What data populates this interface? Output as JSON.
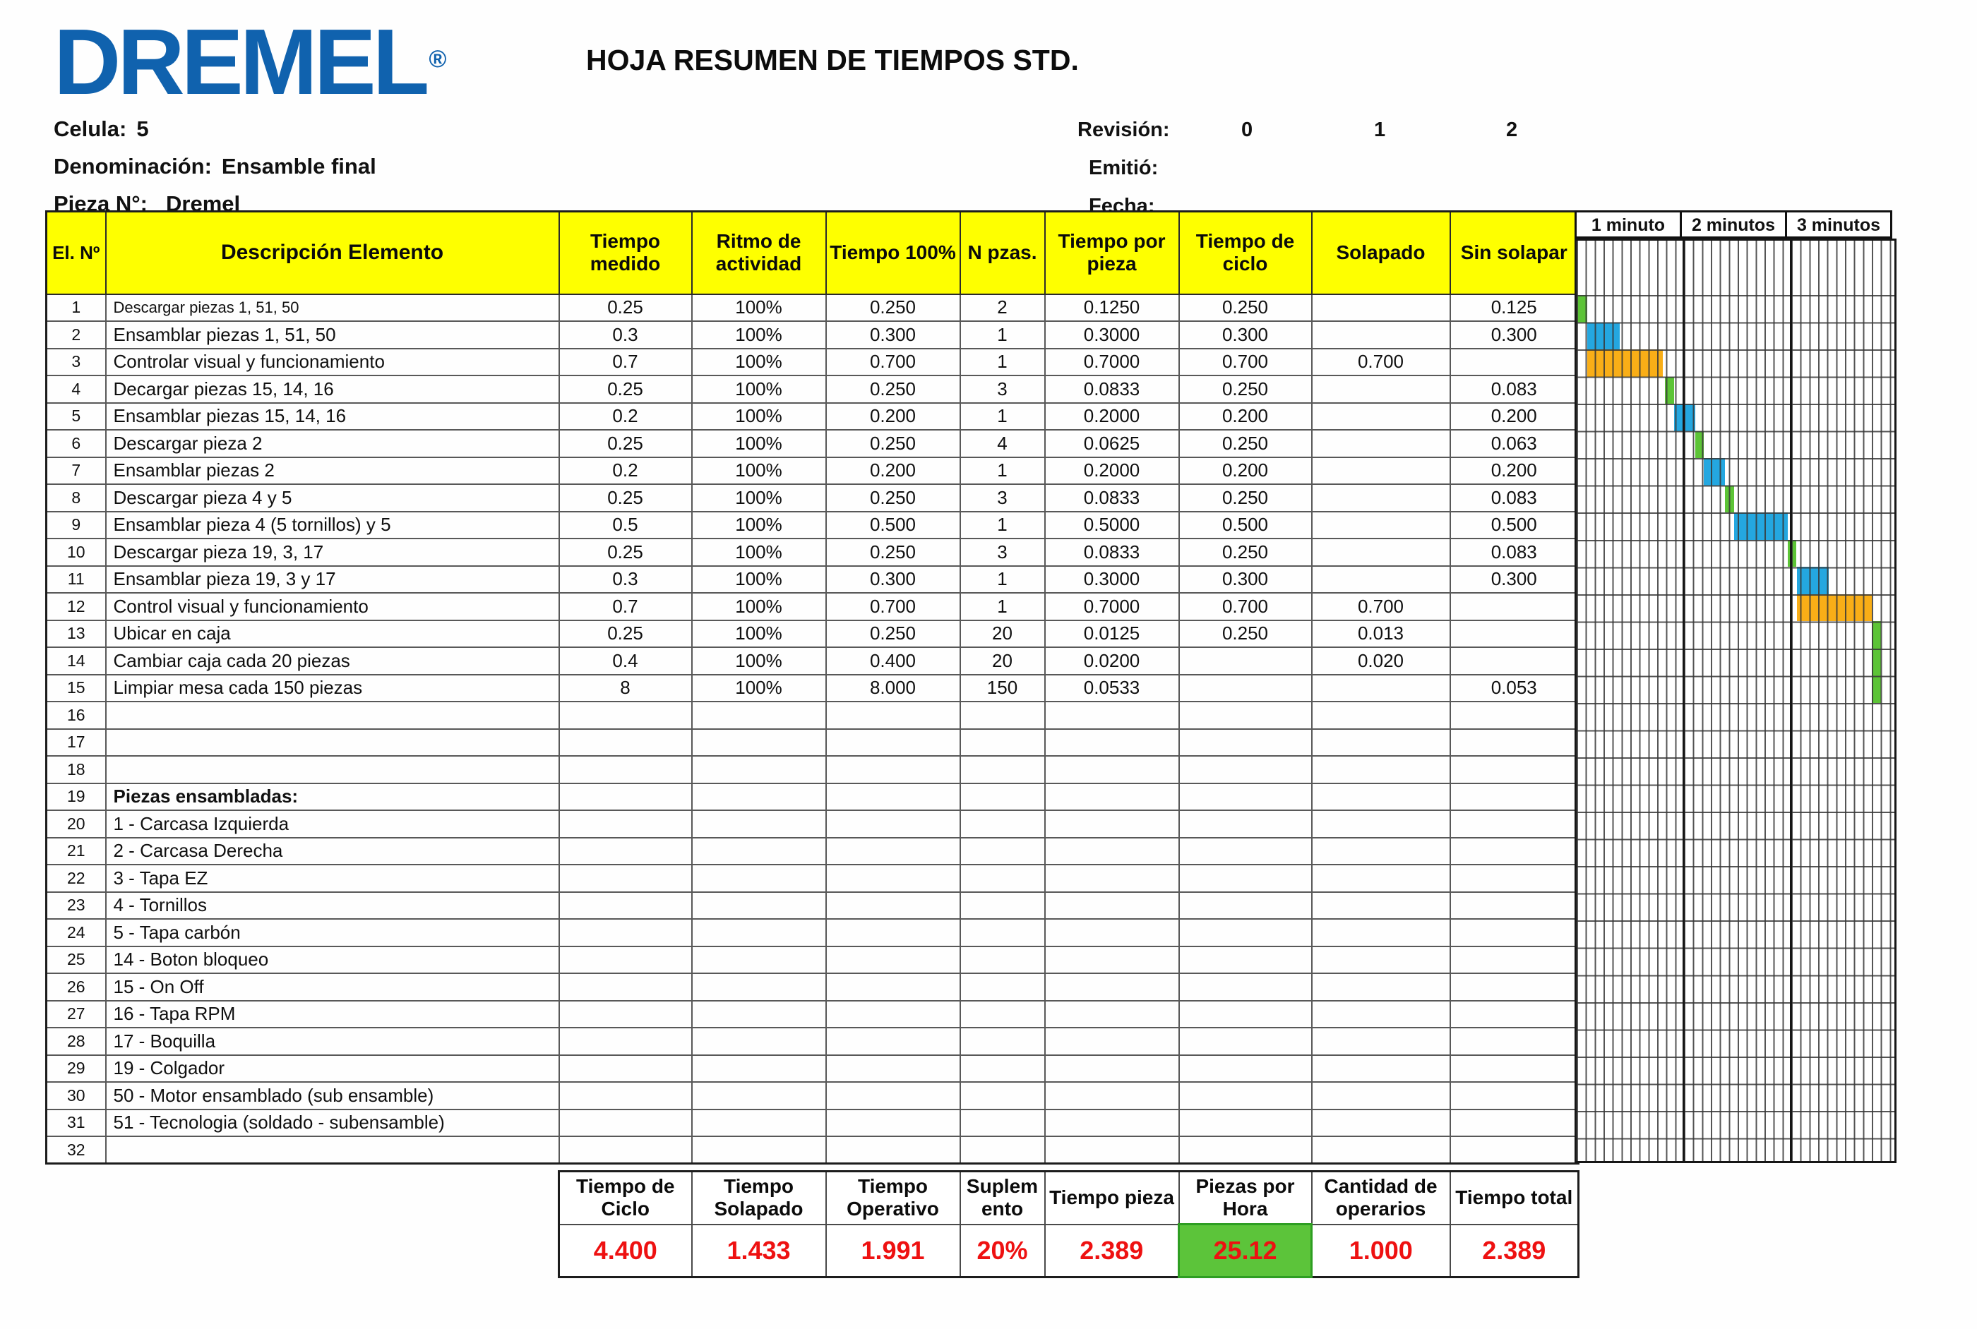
{
  "header": {
    "logo_text": "DREMEL",
    "registered_mark": "®",
    "title": "HOJA RESUMEN DE TIEMPOS STD.",
    "info": [
      {
        "label": "Celula:",
        "value": "5"
      },
      {
        "label": "Denominación:",
        "value": "Ensamble final"
      },
      {
        "label": "Pieza N°:",
        "value": "Dremel"
      }
    ],
    "revision": {
      "label": "Revisión:",
      "values": [
        "0",
        "1",
        "2"
      ]
    },
    "emitted_label": "Emitió:",
    "date_label": "Fecha:"
  },
  "table": {
    "columns": [
      "El. Nº",
      "Descripción Elemento",
      "Tiempo medido",
      "Ritmo de actividad",
      "Tiempo 100%",
      "N pzas.",
      "Tiempo por pieza",
      "Tiempo de ciclo",
      "Solapado",
      "Sin solapar"
    ],
    "rows": [
      {
        "n": "1",
        "desc": "Descargar piezas 1, 51, 50",
        "medido": "0.25",
        "ritmo": "100%",
        "t100": "0.250",
        "npzas": "2",
        "tpieza": "0.1250",
        "tciclo": "0.250",
        "solapado": "",
        "sinsolapar": "0.125"
      },
      {
        "n": "2",
        "desc": "Ensamblar piezas 1, 51, 50",
        "medido": "0.3",
        "ritmo": "100%",
        "t100": "0.300",
        "npzas": "1",
        "tpieza": "0.3000",
        "tciclo": "0.300",
        "solapado": "",
        "sinsolapar": "0.300"
      },
      {
        "n": "3",
        "desc": "Controlar visual y funcionamiento",
        "medido": "0.7",
        "ritmo": "100%",
        "t100": "0.700",
        "npzas": "1",
        "tpieza": "0.7000",
        "tciclo": "0.700",
        "solapado": "0.700",
        "sinsolapar": ""
      },
      {
        "n": "4",
        "desc": "Decargar piezas 15, 14, 16",
        "medido": "0.25",
        "ritmo": "100%",
        "t100": "0.250",
        "npzas": "3",
        "tpieza": "0.0833",
        "tciclo": "0.250",
        "solapado": "",
        "sinsolapar": "0.083"
      },
      {
        "n": "5",
        "desc": "Ensamblar piezas 15, 14, 16",
        "medido": "0.2",
        "ritmo": "100%",
        "t100": "0.200",
        "npzas": "1",
        "tpieza": "0.2000",
        "tciclo": "0.200",
        "solapado": "",
        "sinsolapar": "0.200"
      },
      {
        "n": "6",
        "desc": "Descargar pieza 2",
        "medido": "0.25",
        "ritmo": "100%",
        "t100": "0.250",
        "npzas": "4",
        "tpieza": "0.0625",
        "tciclo": "0.250",
        "solapado": "",
        "sinsolapar": "0.063"
      },
      {
        "n": "7",
        "desc": "Ensamblar piezas 2",
        "medido": "0.2",
        "ritmo": "100%",
        "t100": "0.200",
        "npzas": "1",
        "tpieza": "0.2000",
        "tciclo": "0.200",
        "solapado": "",
        "sinsolapar": "0.200"
      },
      {
        "n": "8",
        "desc": "Descargar pieza 4 y 5",
        "medido": "0.25",
        "ritmo": "100%",
        "t100": "0.250",
        "npzas": "3",
        "tpieza": "0.0833",
        "tciclo": "0.250",
        "solapado": "",
        "sinsolapar": "0.083"
      },
      {
        "n": "9",
        "desc": "Ensamblar pieza 4 (5 tornillos) y 5",
        "medido": "0.5",
        "ritmo": "100%",
        "t100": "0.500",
        "npzas": "1",
        "tpieza": "0.5000",
        "tciclo": "0.500",
        "solapado": "",
        "sinsolapar": "0.500"
      },
      {
        "n": "10",
        "desc": "Descargar pieza 19, 3, 17",
        "medido": "0.25",
        "ritmo": "100%",
        "t100": "0.250",
        "npzas": "3",
        "tpieza": "0.0833",
        "tciclo": "0.250",
        "solapado": "",
        "sinsolapar": "0.083"
      },
      {
        "n": "11",
        "desc": "Ensamblar pieza 19, 3 y 17",
        "medido": "0.3",
        "ritmo": "100%",
        "t100": "0.300",
        "npzas": "1",
        "tpieza": "0.3000",
        "tciclo": "0.300",
        "solapado": "",
        "sinsolapar": "0.300"
      },
      {
        "n": "12",
        "desc": "Control visual y funcionamiento",
        "medido": "0.7",
        "ritmo": "100%",
        "t100": "0.700",
        "npzas": "1",
        "tpieza": "0.7000",
        "tciclo": "0.700",
        "solapado": "0.700",
        "sinsolapar": ""
      },
      {
        "n": "13",
        "desc": "Ubicar en caja",
        "medido": "0.25",
        "ritmo": "100%",
        "t100": "0.250",
        "npzas": "20",
        "tpieza": "0.0125",
        "tciclo": "0.250",
        "solapado": "0.013",
        "sinsolapar": ""
      },
      {
        "n": "14",
        "desc": "Cambiar caja cada 20 piezas",
        "medido": "0.4",
        "ritmo": "100%",
        "t100": "0.400",
        "npzas": "20",
        "tpieza": "0.0200",
        "tciclo": "",
        "solapado": "0.020",
        "sinsolapar": ""
      },
      {
        "n": "15",
        "desc": "Limpiar mesa cada 150 piezas",
        "medido": "8",
        "ritmo": "100%",
        "t100": "8.000",
        "npzas": "150",
        "tpieza": "0.0533",
        "tciclo": "",
        "solapado": "",
        "sinsolapar": "0.053"
      },
      {
        "n": "16",
        "desc": "",
        "medido": "",
        "ritmo": "",
        "t100": "",
        "npzas": "",
        "tpieza": "",
        "tciclo": "",
        "solapado": "",
        "sinsolapar": ""
      },
      {
        "n": "17",
        "desc": "",
        "medido": "",
        "ritmo": "",
        "t100": "",
        "npzas": "",
        "tpieza": "",
        "tciclo": "",
        "solapado": "",
        "sinsolapar": ""
      },
      {
        "n": "18",
        "desc": "",
        "medido": "",
        "ritmo": "",
        "t100": "",
        "npzas": "",
        "tpieza": "",
        "tciclo": "",
        "solapado": "",
        "sinsolapar": ""
      },
      {
        "n": "19",
        "desc": "Piezas ensambladas:",
        "medido": "",
        "ritmo": "",
        "t100": "",
        "npzas": "",
        "tpieza": "",
        "tciclo": "",
        "solapado": "",
        "sinsolapar": ""
      },
      {
        "n": "20",
        "desc": "1 - Carcasa Izquierda",
        "medido": "",
        "ritmo": "",
        "t100": "",
        "npzas": "",
        "tpieza": "",
        "tciclo": "",
        "solapado": "",
        "sinsolapar": ""
      },
      {
        "n": "21",
        "desc": "2 - Carcasa Derecha",
        "medido": "",
        "ritmo": "",
        "t100": "",
        "npzas": "",
        "tpieza": "",
        "tciclo": "",
        "solapado": "",
        "sinsolapar": ""
      },
      {
        "n": "22",
        "desc": "3 - Tapa EZ",
        "medido": "",
        "ritmo": "",
        "t100": "",
        "npzas": "",
        "tpieza": "",
        "tciclo": "",
        "solapado": "",
        "sinsolapar": ""
      },
      {
        "n": "23",
        "desc": "4 - Tornillos",
        "medido": "",
        "ritmo": "",
        "t100": "",
        "npzas": "",
        "tpieza": "",
        "tciclo": "",
        "solapado": "",
        "sinsolapar": ""
      },
      {
        "n": "24",
        "desc": "5 - Tapa carbón",
        "medido": "",
        "ritmo": "",
        "t100": "",
        "npzas": "",
        "tpieza": "",
        "tciclo": "",
        "solapado": "",
        "sinsolapar": ""
      },
      {
        "n": "25",
        "desc": "14 - Boton bloqueo",
        "medido": "",
        "ritmo": "",
        "t100": "",
        "npzas": "",
        "tpieza": "",
        "tciclo": "",
        "solapado": "",
        "sinsolapar": ""
      },
      {
        "n": "26",
        "desc": "15 - On Off",
        "medido": "",
        "ritmo": "",
        "t100": "",
        "npzas": "",
        "tpieza": "",
        "tciclo": "",
        "solapado": "",
        "sinsolapar": ""
      },
      {
        "n": "27",
        "desc": "16 - Tapa RPM",
        "medido": "",
        "ritmo": "",
        "t100": "",
        "npzas": "",
        "tpieza": "",
        "tciclo": "",
        "solapado": "",
        "sinsolapar": ""
      },
      {
        "n": "28",
        "desc": "17 - Boquilla",
        "medido": "",
        "ritmo": "",
        "t100": "",
        "npzas": "",
        "tpieza": "",
        "tciclo": "",
        "solapado": "",
        "sinsolapar": ""
      },
      {
        "n": "29",
        "desc": "19 - Colgador",
        "medido": "",
        "ritmo": "",
        "t100": "",
        "npzas": "",
        "tpieza": "",
        "tciclo": "",
        "solapado": "",
        "sinsolapar": ""
      },
      {
        "n": "30",
        "desc": "50 - Motor ensamblado (sub ensamble)",
        "medido": "",
        "ritmo": "",
        "t100": "",
        "npzas": "",
        "tpieza": "",
        "tciclo": "",
        "solapado": "",
        "sinsolapar": ""
      },
      {
        "n": "31",
        "desc": "51 - Tecnologia (soldado - subensamble)",
        "medido": "",
        "ritmo": "",
        "t100": "",
        "npzas": "",
        "tpieza": "",
        "tciclo": "",
        "solapado": "",
        "sinsolapar": ""
      },
      {
        "n": "32",
        "desc": "",
        "medido": "",
        "ritmo": "",
        "t100": "",
        "npzas": "",
        "tpieza": "",
        "tciclo": "",
        "solapado": "",
        "sinsolapar": ""
      }
    ]
  },
  "gantt": {
    "scale_headers": [
      "1 minuto",
      "2 minutos",
      "3 minutos"
    ],
    "cells_per_minute": 12,
    "colors": {
      "green": "#5cc436",
      "blue": "#24a7e0",
      "orange": "#f9ae17"
    },
    "bars": [
      {
        "row": 1,
        "start": 0.0,
        "duration": 0.1,
        "color": "green"
      },
      {
        "row": 2,
        "start": 0.1,
        "duration": 0.3,
        "color": "blue"
      },
      {
        "row": 3,
        "start": 0.1,
        "duration": 0.7,
        "color": "orange"
      },
      {
        "row": 4,
        "start": 0.825,
        "duration": 0.083,
        "color": "green"
      },
      {
        "row": 5,
        "start": 0.908,
        "duration": 0.2,
        "color": "blue"
      },
      {
        "row": 6,
        "start": 1.108,
        "duration": 0.075,
        "color": "green"
      },
      {
        "row": 7,
        "start": 1.183,
        "duration": 0.2,
        "color": "blue"
      },
      {
        "row": 8,
        "start": 1.383,
        "duration": 0.083,
        "color": "green"
      },
      {
        "row": 9,
        "start": 1.466,
        "duration": 0.5,
        "color": "blue"
      },
      {
        "row": 10,
        "start": 1.966,
        "duration": 0.083,
        "color": "green"
      },
      {
        "row": 11,
        "start": 2.05,
        "duration": 0.3,
        "color": "blue"
      },
      {
        "row": 12,
        "start": 2.05,
        "duration": 0.7,
        "color": "orange"
      },
      {
        "row": 13,
        "start": 2.75,
        "duration": 0.083,
        "color": "green",
        "rowspan": 3
      }
    ]
  },
  "summary": {
    "columns": [
      {
        "label": "Tiempo de Ciclo",
        "value": "4.400"
      },
      {
        "label": "Tiempo Solapado",
        "value": "1.433"
      },
      {
        "label": "Tiempo Operativo",
        "value": "1.991"
      },
      {
        "label": "Suplemento",
        "value": "20%"
      },
      {
        "label": "Tiempo pieza",
        "value": "2.389"
      },
      {
        "label": "Piezas por Hora",
        "value": "25.12",
        "highlight": true
      },
      {
        "label": "Cantidad de operarios",
        "value": "1.000"
      },
      {
        "label": "Tiempo total",
        "value": "2.389"
      }
    ]
  }
}
